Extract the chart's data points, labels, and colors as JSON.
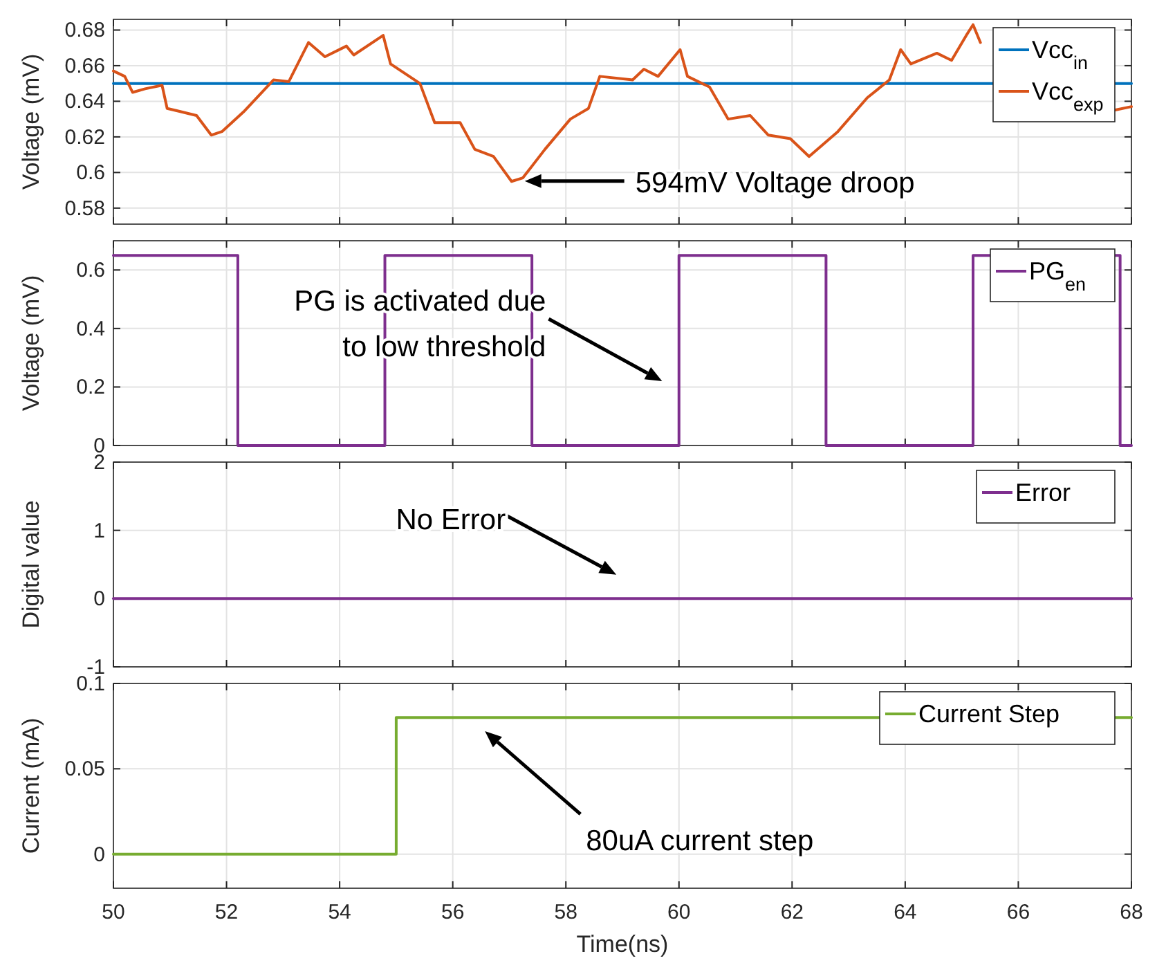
{
  "chart_data": [
    {
      "type": "line",
      "ylabel": "Voltage (mV)",
      "xlim": [
        50,
        68
      ],
      "xticks": [
        50,
        52,
        54,
        56,
        58,
        60,
        62,
        64,
        66,
        68
      ],
      "ylim": [
        0.571,
        0.686
      ],
      "yticks": [
        0.58,
        0.6,
        0.62,
        0.64,
        0.66,
        0.68
      ],
      "grid": true,
      "legend": "top right",
      "tick_labels": "y",
      "series": [
        {
          "name": "Vcc$_{in}$",
          "color": "#0072bd",
          "x": [
            50,
            68
          ],
          "values": [
            0.65,
            0.65
          ]
        },
        {
          "name": "Vcc$_{exp}$",
          "color": "#d95319",
          "x": [
            50,
            50.2,
            50.34,
            50.56,
            50.86,
            50.95,
            51.47,
            51.73,
            51.92,
            52.3,
            52.83,
            53.1,
            53.45,
            53.74,
            54.12,
            54.25,
            54.77,
            54.9,
            55.42,
            55.68,
            56.13,
            56.39,
            56.72,
            57.04,
            57.24,
            57.63,
            58.08,
            58.4,
            58.6,
            59.18,
            59.38,
            59.63,
            60.02,
            60.15,
            60.54,
            60.87,
            61.26,
            61.58,
            61.97,
            62.3,
            62.81,
            63.33,
            63.72,
            63.92,
            64.1,
            64.56,
            64.82,
            65.08,
            65.2,
            65.33,
            65.6,
            67.7,
            68
          ],
          "values": [
            0.657,
            0.654,
            0.645,
            0.647,
            0.649,
            0.636,
            0.632,
            0.621,
            0.623,
            0.634,
            0.652,
            0.651,
            0.673,
            0.665,
            0.671,
            0.666,
            0.677,
            0.661,
            0.65,
            0.628,
            0.628,
            0.613,
            0.609,
            0.595,
            0.597,
            0.613,
            0.63,
            0.636,
            0.654,
            0.652,
            0.658,
            0.654,
            0.669,
            0.654,
            0.648,
            0.63,
            0.632,
            0.621,
            0.619,
            0.609,
            0.623,
            0.642,
            0.652,
            0.669,
            0.661,
            0.667,
            0.663,
            0.677,
            0.683,
            0.673,
            null,
            0.635,
            0.637
          ]
        }
      ],
      "annotations": [
        "594mV Voltage droop"
      ]
    },
    {
      "type": "step",
      "ylabel": "Voltage (mV)",
      "xlim": [
        50,
        68
      ],
      "xticks": [
        50,
        52,
        54,
        56,
        58,
        60,
        62,
        64,
        66,
        68
      ],
      "ylim": [
        0,
        0.7
      ],
      "yticks": [
        0,
        0.2,
        0.4,
        0.6
      ],
      "grid": true,
      "legend": "top right",
      "tick_labels": "y",
      "series": [
        {
          "name": "PG$_{en}$",
          "color": "#7e2f8e",
          "x": [
            50,
            52.2,
            54.8,
            57.4,
            60,
            62.6,
            65.2,
            67.8,
            68
          ],
          "values": [
            0.65,
            0,
            0.65,
            0,
            0.65,
            0,
            0.65,
            0,
            0
          ]
        }
      ],
      "annotations": [
        "PG is activated due\nto low threshold"
      ]
    },
    {
      "type": "line",
      "ylabel": "Digital value",
      "xlim": [
        50,
        68
      ],
      "xticks": [
        50,
        52,
        54,
        56,
        58,
        60,
        62,
        64,
        66,
        68
      ],
      "ylim": [
        -1,
        2
      ],
      "yticks": [
        -1,
        0,
        1,
        2
      ],
      "grid": true,
      "legend": "top right",
      "tick_labels": "y",
      "series": [
        {
          "name": "Error",
          "color": "#7e2f8e",
          "x": [
            50,
            68
          ],
          "values": [
            0,
            0
          ]
        }
      ],
      "annotations": [
        "No Error"
      ]
    },
    {
      "type": "step",
      "xlabel": "Time(ns)",
      "ylabel": "Current (mA)",
      "xlim": [
        50,
        68
      ],
      "xticks": [
        50,
        52,
        54,
        56,
        58,
        60,
        62,
        64,
        66,
        68
      ],
      "ylim": [
        -0.02,
        0.1
      ],
      "yticks": [
        0,
        0.05,
        0.1
      ],
      "grid": true,
      "legend": "top right",
      "series": [
        {
          "name": "Current Step",
          "color": "#77ac30",
          "x": [
            50,
            55,
            68
          ],
          "values": [
            0,
            0.08,
            0.08
          ]
        }
      ],
      "annotations": [
        "80uA current step"
      ]
    }
  ]
}
